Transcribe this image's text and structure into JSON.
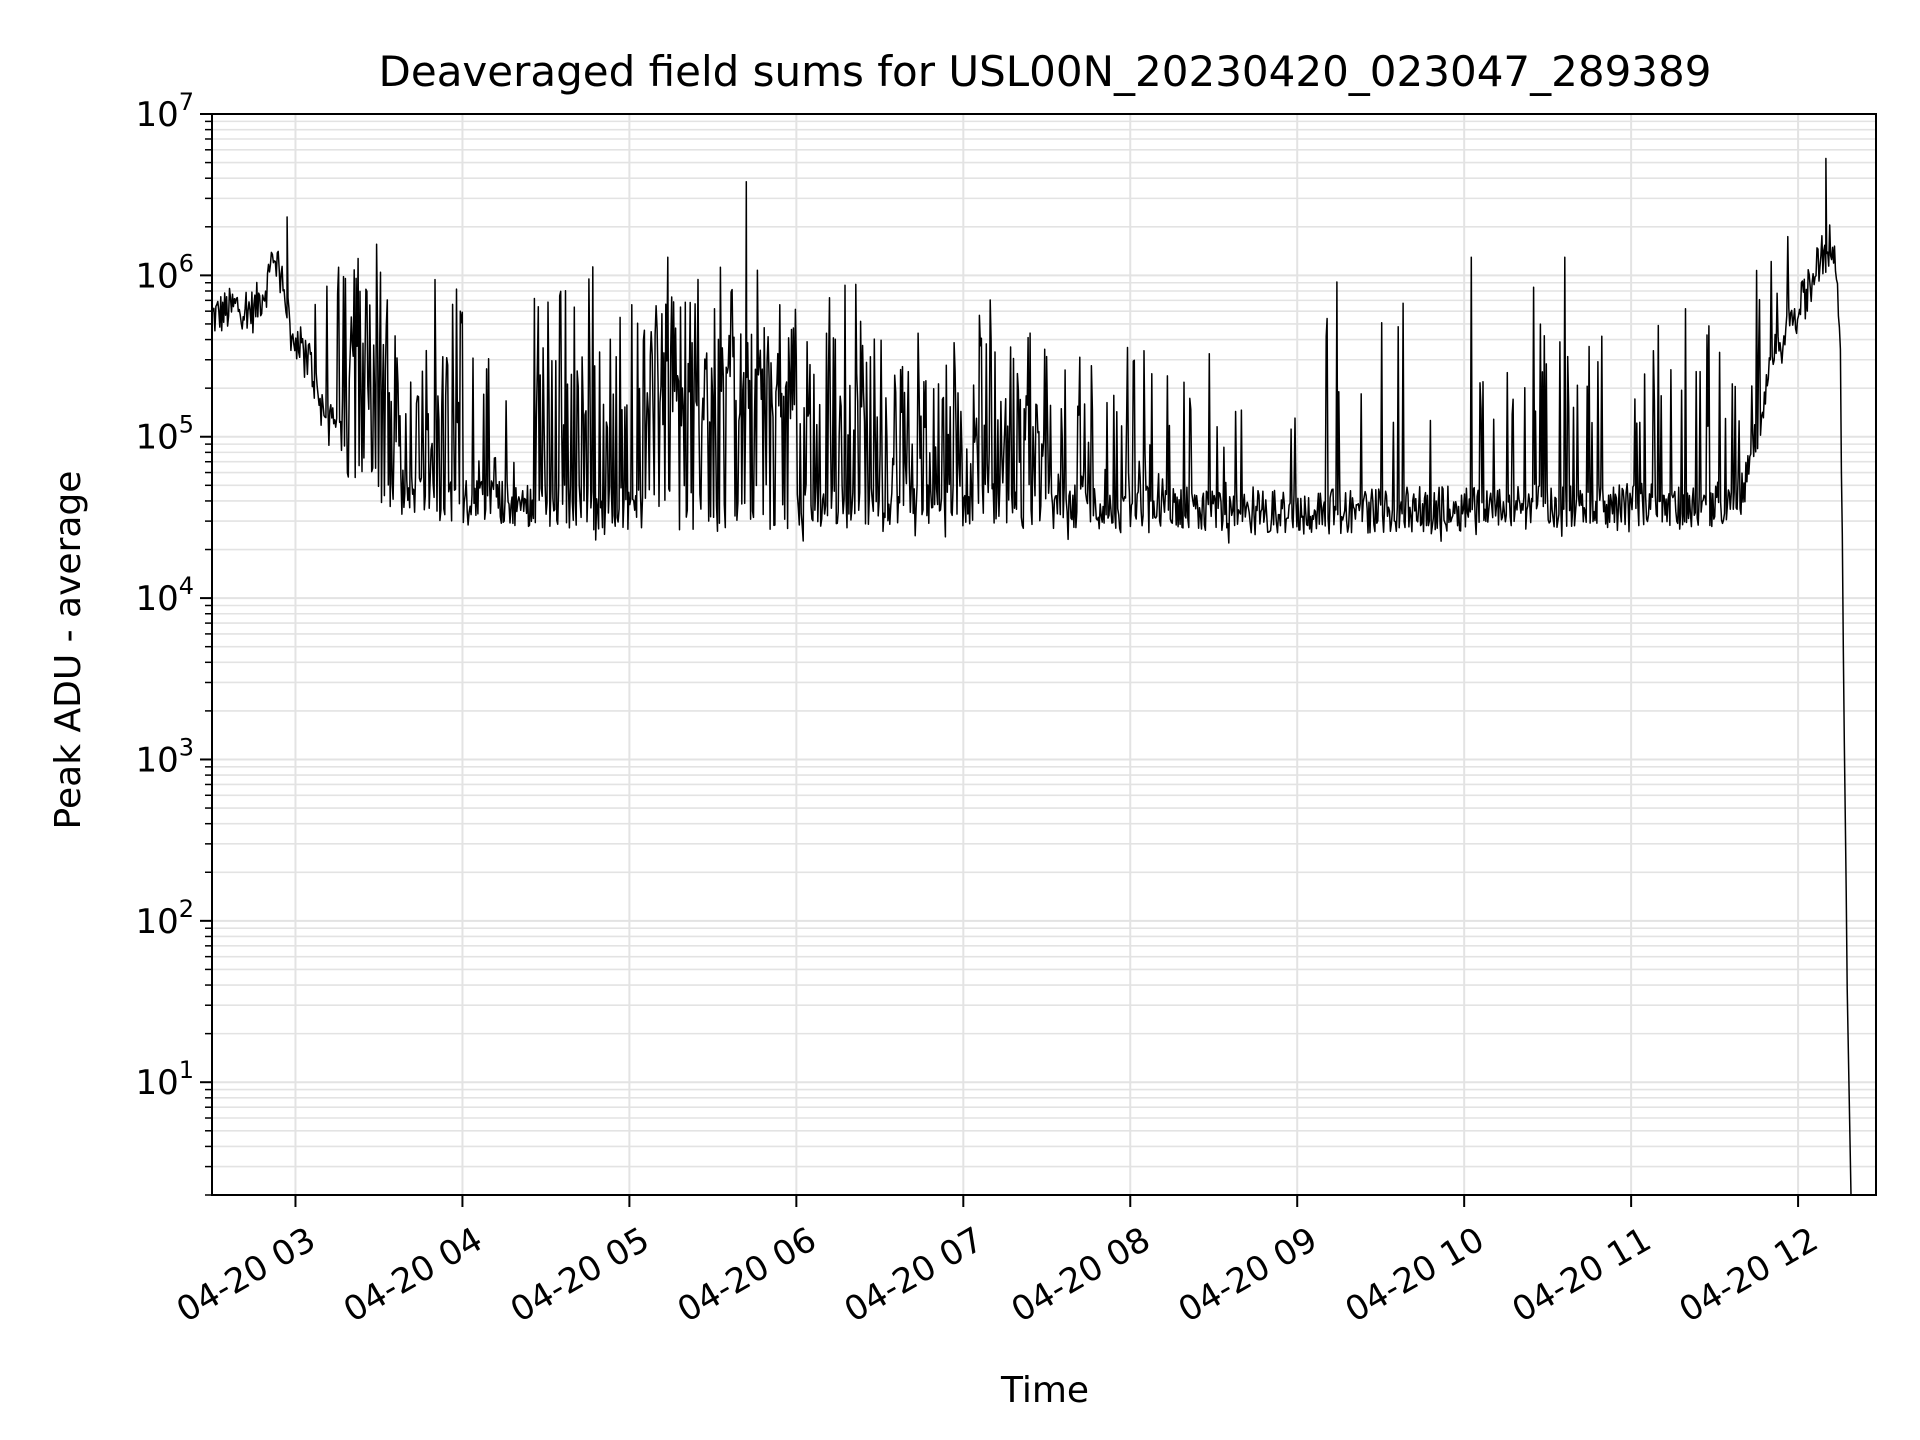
{
  "chart_data": {
    "type": "line",
    "title": "Deaveraged field sums for USL00N_20230420_023047_289389",
    "xlabel": "Time",
    "ylabel": "Peak ADU - average",
    "y_scale": "log",
    "ylim": [
      2,
      10000000
    ],
    "xlim": [
      "2023-04-20 02:30",
      "2023-04-20 12:28"
    ],
    "grid": true,
    "line_color": "#000000",
    "grid_color": "#e3e3e3",
    "x_ticks": [
      {
        "t": "2023-04-20 03:00",
        "label": "04-20 03"
      },
      {
        "t": "2023-04-20 04:00",
        "label": "04-20 04"
      },
      {
        "t": "2023-04-20 05:00",
        "label": "04-20 05"
      },
      {
        "t": "2023-04-20 06:00",
        "label": "04-20 06"
      },
      {
        "t": "2023-04-20 07:00",
        "label": "04-20 07"
      },
      {
        "t": "2023-04-20 08:00",
        "label": "04-20 08"
      },
      {
        "t": "2023-04-20 09:00",
        "label": "04-20 09"
      },
      {
        "t": "2023-04-20 10:00",
        "label": "04-20 10"
      },
      {
        "t": "2023-04-20 11:00",
        "label": "04-20 11"
      },
      {
        "t": "2023-04-20 12:00",
        "label": "04-20 12"
      }
    ],
    "y_ticks": [
      {
        "value": 10,
        "base": "10",
        "exp": "1"
      },
      {
        "value": 100,
        "base": "10",
        "exp": "2"
      },
      {
        "value": 1000,
        "base": "10",
        "exp": "3"
      },
      {
        "value": 10000,
        "base": "10",
        "exp": "4"
      },
      {
        "value": 100000,
        "base": "10",
        "exp": "5"
      },
      {
        "value": 1000000,
        "base": "10",
        "exp": "6"
      },
      {
        "value": 10000000,
        "base": "10",
        "exp": "7"
      }
    ],
    "series": [
      {
        "baseline": [
          [
            "2023-04-20 02:30",
            550000
          ],
          [
            "2023-04-20 02:40",
            650000
          ],
          [
            "2023-04-20 02:45",
            600000
          ],
          [
            "2023-04-20 02:50",
            900000
          ],
          [
            "2023-04-20 02:52",
            1450000
          ],
          [
            "2023-04-20 02:55",
            1000000
          ],
          [
            "2023-04-20 02:59",
            400000
          ],
          [
            "2023-04-20 03:05",
            300000
          ],
          [
            "2023-04-20 03:10",
            140000
          ],
          [
            "2023-04-20 03:20",
            70000
          ],
          [
            "2023-04-20 03:30",
            50000
          ],
          [
            "2023-04-20 03:45",
            42000
          ],
          [
            "2023-04-20 04:00",
            40000
          ],
          [
            "2023-04-20 05:00",
            36000
          ],
          [
            "2023-04-20 06:00",
            37000
          ],
          [
            "2023-04-20 07:00",
            38000
          ],
          [
            "2023-04-20 08:00",
            36000
          ],
          [
            "2023-04-20 09:00",
            34000
          ],
          [
            "2023-04-20 10:00",
            36000
          ],
          [
            "2023-04-20 11:00",
            38000
          ],
          [
            "2023-04-20 11:30",
            38000
          ],
          [
            "2023-04-20 11:40",
            45000
          ],
          [
            "2023-04-20 11:45",
            100000
          ],
          [
            "2023-04-20 11:50",
            300000
          ],
          [
            "2023-04-20 12:00",
            600000
          ],
          [
            "2023-04-20 12:05",
            900000
          ],
          [
            "2023-04-20 12:10",
            1600000
          ],
          [
            "2023-04-20 12:13",
            1400000
          ],
          [
            "2023-04-20 12:15",
            600000
          ],
          [
            "2023-04-20 12:18",
            10
          ],
          [
            "2023-04-20 12:19",
            2
          ]
        ],
        "spike_bands": [
          {
            "from": "2023-04-20 02:50",
            "to": "2023-04-20 03:12",
            "peak": 2000000,
            "density": 0.15
          },
          {
            "from": "2023-04-20 03:15",
            "to": "2023-04-20 03:35",
            "peak": 1750000,
            "density": 0.55
          },
          {
            "from": "2023-04-20 03:35",
            "to": "2023-04-20 04:00",
            "peak": 1000000,
            "density": 0.45
          },
          {
            "from": "2023-04-20 04:00",
            "to": "2023-04-20 04:25",
            "peak": 450000,
            "density": 0.2
          },
          {
            "from": "2023-04-20 04:25",
            "to": "2023-04-20 05:05",
            "peak": 1400000,
            "density": 0.35
          },
          {
            "from": "2023-04-20 05:05",
            "to": "2023-04-20 06:00",
            "peak": 1400000,
            "density": 0.7
          },
          {
            "from": "2023-04-20 06:00",
            "to": "2023-04-20 06:30",
            "peak": 1200000,
            "density": 0.5
          },
          {
            "from": "2023-04-20 06:30",
            "to": "2023-04-20 07:30",
            "peak": 800000,
            "density": 0.55
          },
          {
            "from": "2023-04-20 07:30",
            "to": "2023-04-20 08:10",
            "peak": 500000,
            "density": 0.35
          },
          {
            "from": "2023-04-20 08:10",
            "to": "2023-04-20 08:50",
            "peak": 500000,
            "density": 0.15
          },
          {
            "from": "2023-04-20 08:50",
            "to": "2023-04-20 09:35",
            "peak": 1300000,
            "density": 0.06
          },
          {
            "from": "2023-04-20 09:35",
            "to": "2023-04-20 10:20",
            "peak": 1400000,
            "density": 0.1
          },
          {
            "from": "2023-04-20 10:20",
            "to": "2023-04-20 11:45",
            "peak": 1400000,
            "density": 0.16
          },
          {
            "from": "2023-04-20 11:45",
            "to": "2023-04-20 12:00",
            "peak": 1800000,
            "density": 0.25
          }
        ],
        "peaks": [
          [
            "2023-04-20 02:57",
            2300000
          ],
          [
            "2023-04-20 05:42",
            3800000
          ],
          [
            "2023-04-20 12:10",
            5300000
          ]
        ]
      }
    ]
  }
}
